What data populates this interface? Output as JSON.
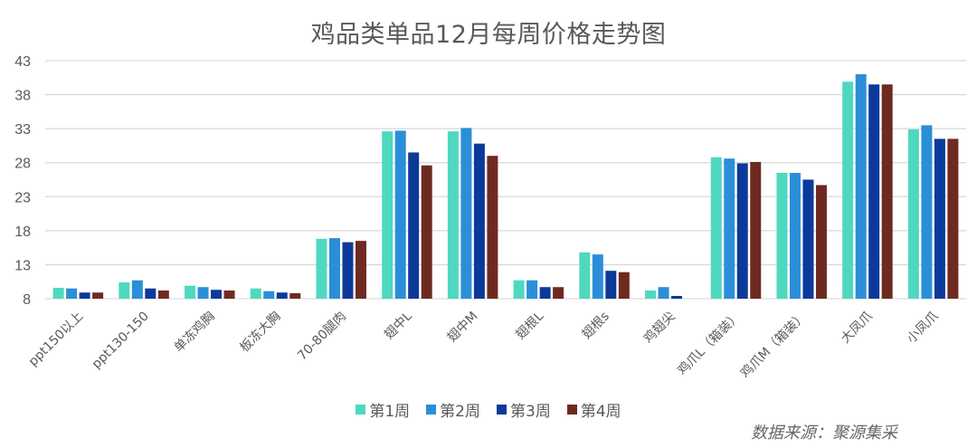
{
  "chart_data": {
    "type": "bar",
    "title": "鸡品类单品12月每周价格走势图",
    "xlabel": "",
    "ylabel": "",
    "ylim": [
      8,
      43
    ],
    "yticks": [
      8,
      13,
      18,
      23,
      28,
      33,
      38,
      43
    ],
    "grid": true,
    "legend_position": "bottom",
    "categories": [
      "ppt150以上",
      "ppt130-150",
      "单冻鸡胸",
      "板冻大胸",
      "70-80腿肉",
      "翅中L",
      "翅中M",
      "翅根L",
      "翅根s",
      "鸡翅尖",
      "鸡爪L（箱装）",
      "鸡爪M（箱装）",
      "大凤爪",
      "小凤爪"
    ],
    "series": [
      {
        "name": "第1周",
        "color": "#4fd8c0",
        "values": [
          9.6,
          10.4,
          9.9,
          9.5,
          16.8,
          32.6,
          32.6,
          10.7,
          14.8,
          9.2,
          28.8,
          26.5,
          39.9,
          32.9
        ]
      },
      {
        "name": "第2周",
        "color": "#2a8fd8",
        "values": [
          9.5,
          10.7,
          9.7,
          9.1,
          16.9,
          32.7,
          33.1,
          10.7,
          14.5,
          9.7,
          28.6,
          26.5,
          41.0,
          33.5
        ]
      },
      {
        "name": "第3周",
        "color": "#0b3a9a",
        "values": [
          8.9,
          9.5,
          9.3,
          8.9,
          16.3,
          29.5,
          30.8,
          9.7,
          12.1,
          8.4,
          27.9,
          25.5,
          39.5,
          31.5
        ]
      },
      {
        "name": "第4周",
        "color": "#6e2a20",
        "values": [
          8.9,
          9.2,
          9.2,
          8.8,
          16.5,
          27.6,
          29.0,
          9.7,
          11.9,
          null,
          28.1,
          24.7,
          39.5,
          31.5
        ]
      }
    ],
    "source": "数据来源：聚源集采"
  },
  "legend": [
    {
      "label": "第1周",
      "color": "#4fd8c0"
    },
    {
      "label": "第2周",
      "color": "#2a8fd8"
    },
    {
      "label": "第3周",
      "color": "#0b3a9a"
    },
    {
      "label": "第4周",
      "color": "#6e2a20"
    }
  ]
}
